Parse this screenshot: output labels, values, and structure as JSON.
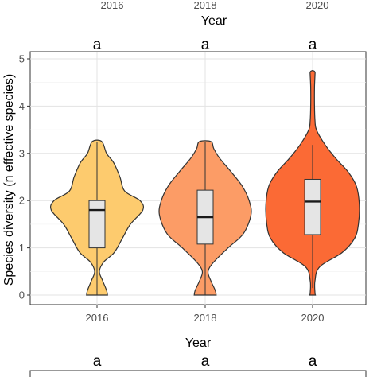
{
  "top_strip": {
    "tick_labels": [
      "2016",
      "2018",
      "2020"
    ],
    "xlabel": "Year"
  },
  "chart_data": {
    "type": "violin",
    "categories": [
      "2016",
      "2018",
      "2020"
    ],
    "xlabel": "Year",
    "ylabel": "Species diversity (n effective species)",
    "ylim": [
      0,
      5
    ],
    "yticks": [
      0,
      1,
      2,
      3,
      4,
      5
    ],
    "grid": true,
    "series": [
      {
        "x": "2016",
        "color": "#FDCB6E",
        "significance": "a",
        "box": {
          "whisker_low": 0,
          "q1": 1.0,
          "median": 1.8,
          "q3": 2.0,
          "whisker_high": 3.25
        },
        "density_profile": [
          [
            0.0,
            0.22
          ],
          [
            0.1,
            0.2
          ],
          [
            0.3,
            0.12
          ],
          [
            0.5,
            0.05
          ],
          [
            0.7,
            0.14
          ],
          [
            0.9,
            0.36
          ],
          [
            1.2,
            0.53
          ],
          [
            1.5,
            0.7
          ],
          [
            1.8,
            0.96
          ],
          [
            2.0,
            0.9
          ],
          [
            2.2,
            0.58
          ],
          [
            2.5,
            0.48
          ],
          [
            2.8,
            0.35
          ],
          [
            3.0,
            0.2
          ],
          [
            3.25,
            0.1
          ]
        ]
      },
      {
        "x": "2018",
        "color": "#FC9C66",
        "significance": "a",
        "box": {
          "whisker_low": 0,
          "q1": 1.08,
          "median": 1.65,
          "q3": 2.22,
          "whisker_high": 3.25
        },
        "density_profile": [
          [
            0.0,
            0.23
          ],
          [
            0.1,
            0.21
          ],
          [
            0.3,
            0.12
          ],
          [
            0.5,
            0.06
          ],
          [
            0.7,
            0.18
          ],
          [
            1.0,
            0.48
          ],
          [
            1.3,
            0.8
          ],
          [
            1.7,
            0.96
          ],
          [
            2.0,
            0.92
          ],
          [
            2.3,
            0.78
          ],
          [
            2.6,
            0.55
          ],
          [
            2.9,
            0.3
          ],
          [
            3.1,
            0.18
          ],
          [
            3.25,
            0.12
          ]
        ]
      },
      {
        "x": "2020",
        "color": "#FB6A35",
        "significance": "a",
        "box": {
          "whisker_low": 0.15,
          "q1": 1.28,
          "median": 1.98,
          "q3": 2.45,
          "whisker_high": 3.18
        },
        "density_profile": [
          [
            0.0,
            0.06
          ],
          [
            0.05,
            0.05
          ],
          [
            0.3,
            0.05
          ],
          [
            0.6,
            0.15
          ],
          [
            0.9,
            0.62
          ],
          [
            1.2,
            0.88
          ],
          [
            1.5,
            0.96
          ],
          [
            1.9,
            0.98
          ],
          [
            2.3,
            0.92
          ],
          [
            2.6,
            0.75
          ],
          [
            2.9,
            0.48
          ],
          [
            3.2,
            0.25
          ],
          [
            3.5,
            0.08
          ],
          [
            3.7,
            0.05
          ],
          [
            4.0,
            0.04
          ],
          [
            4.4,
            0.04
          ],
          [
            4.65,
            0.05
          ],
          [
            4.72,
            0.05
          ],
          [
            4.75,
            0.02
          ]
        ]
      }
    ]
  },
  "bottom_strip": {
    "significance": [
      "a",
      "a",
      "a"
    ]
  }
}
